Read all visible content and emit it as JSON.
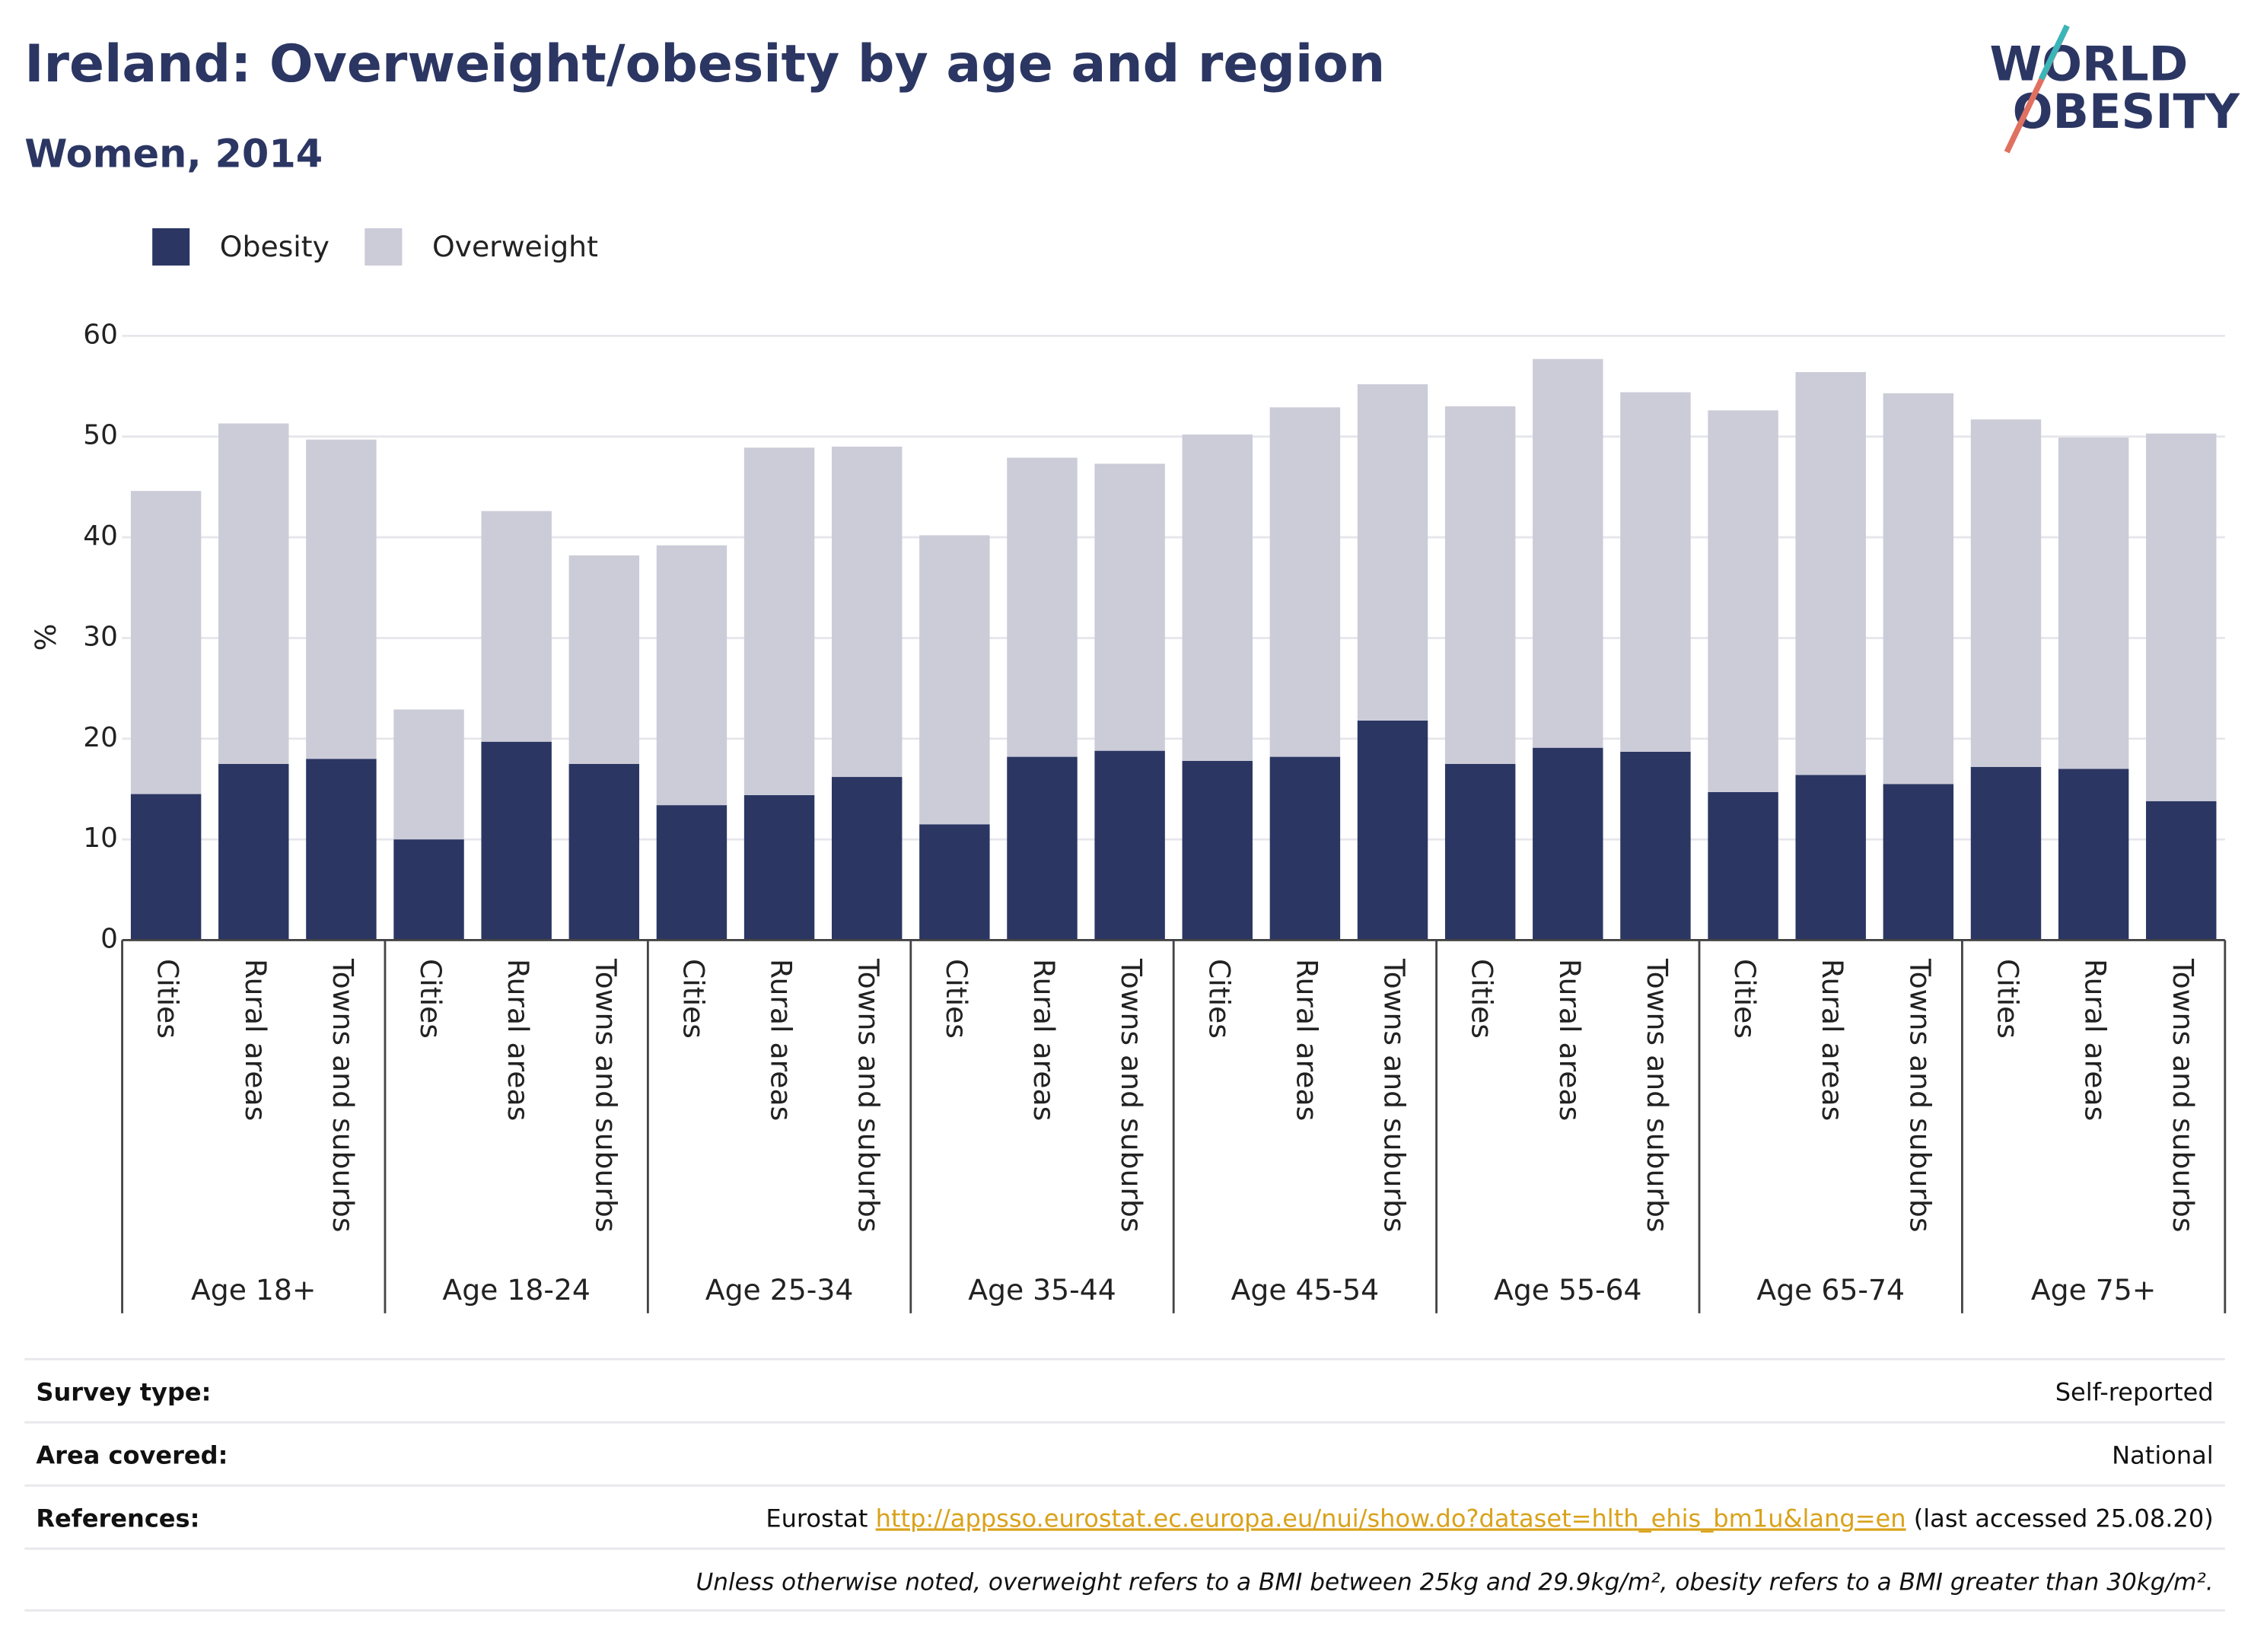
{
  "logo": {
    "line1": "WORLD",
    "line2": "OBESITY"
  },
  "chart_data": {
    "type": "stacked_bar",
    "title": "Ireland: Overweight/obesity by age and region",
    "subtitle": "Women, 2014",
    "y_label": "%",
    "categories": [
      "Cities",
      "Rural areas",
      "Towns and suburbs",
      "Cities",
      "Rural areas",
      "Towns and suburbs",
      "Cities",
      "Rural areas",
      "Towns and suburbs",
      "Cities",
      "Rural areas",
      "Towns and suburbs",
      "Cities",
      "Rural areas",
      "Towns and suburbs",
      "Cities",
      "Rural areas",
      "Towns and suburbs",
      "Cities",
      "Rural areas",
      "Towns and suburbs",
      "Cities",
      "Rural areas",
      "Towns and suburbs"
    ],
    "groups": [
      "Age 18+",
      "Age 18-24",
      "Age 25-34",
      "Age 35-44",
      "Age 45-54",
      "Age 55-64",
      "Age 65-74",
      "Age 75+"
    ],
    "series": [
      {
        "name": "Obesity",
        "color": "#2b3663",
        "values": [
          14.5,
          17.5,
          18.0,
          10.0,
          19.7,
          17.5,
          13.4,
          14.4,
          16.2,
          11.5,
          18.2,
          18.8,
          17.8,
          18.2,
          21.8,
          17.5,
          19.1,
          18.7,
          14.7,
          16.4,
          15.5,
          17.2,
          17.0,
          13.8
        ]
      },
      {
        "name": "Overweight",
        "color": "#cbccd8",
        "values": [
          30.1,
          33.8,
          31.7,
          12.9,
          22.9,
          20.7,
          25.8,
          34.5,
          32.8,
          28.7,
          29.7,
          28.5,
          32.4,
          34.7,
          33.4,
          35.5,
          38.6,
          35.7,
          37.9,
          40.0,
          38.8,
          34.5,
          32.9,
          36.5
        ]
      }
    ],
    "ylim": [
      0,
      60
    ],
    "yticks": [
      0,
      10,
      20,
      30,
      40,
      50,
      60
    ],
    "grid": true
  },
  "footer": {
    "rows": [
      {
        "label": "Survey type:",
        "value": "Self-reported"
      },
      {
        "label": "Area covered:",
        "value": "National"
      },
      {
        "label": "References:",
        "source": "Eurostat",
        "url": "http://appsso.eurostat.ec.europa.eu/nui/show.do?dataset=hlth_ehis_bm1u&lang=en",
        "accessed": "(last accessed 25.08.20)"
      }
    ],
    "note": "Unless otherwise noted, overweight refers to a BMI between 25kg and 29.9kg/m², obesity refers to a BMI greater than 30kg/m²."
  }
}
